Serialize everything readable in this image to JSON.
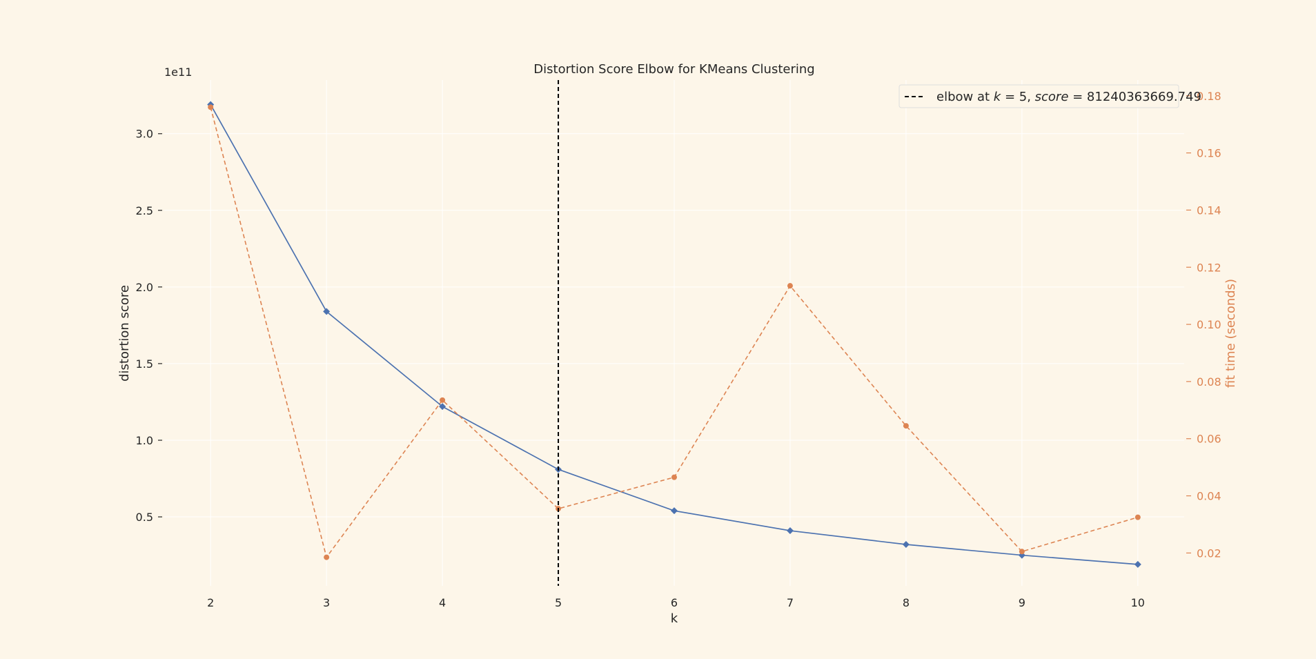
{
  "chart_data": {
    "type": "line",
    "title": "Distortion Score Elbow for KMeans Clustering",
    "xlabel": "k",
    "ylabel": "distortion score",
    "y2label": "fit time (seconds)",
    "y_offset_label": "1e11",
    "x": [
      2,
      3,
      4,
      5,
      6,
      7,
      8,
      9,
      10
    ],
    "xlim": [
      1.6,
      10.4
    ],
    "ylim": [
      0.05,
      3.35
    ],
    "y2lim": [
      0.0085,
      0.1855
    ],
    "x_ticks": [
      "2",
      "3",
      "4",
      "5",
      "6",
      "7",
      "8",
      "9",
      "10"
    ],
    "y_ticks": [
      0.5,
      1.0,
      1.5,
      2.0,
      2.5,
      3.0
    ],
    "y_tick_labels": [
      "0.5",
      "1.0",
      "1.5",
      "2.0",
      "2.5",
      "3.0"
    ],
    "y2_ticks": [
      0.02,
      0.04,
      0.06,
      0.08,
      0.1,
      0.12,
      0.14,
      0.16,
      0.18
    ],
    "y2_tick_labels": [
      "0.02",
      "0.04",
      "0.06",
      "0.08",
      "0.10",
      "0.12",
      "0.14",
      "0.16",
      "0.18"
    ],
    "series": [
      {
        "axis": "left",
        "style": "solid",
        "marker": "diamond",
        "color": "#4c72b0",
        "values": [
          3.19,
          1.84,
          1.22,
          0.81,
          0.54,
          0.41,
          0.32,
          0.25,
          0.19
        ]
      },
      {
        "axis": "right",
        "style": "dashed",
        "marker": "circle",
        "color": "#dd8452",
        "values": [
          0.176,
          0.0185,
          0.0735,
          0.0355,
          0.0465,
          0.1135,
          0.0645,
          0.0205,
          0.0325
        ]
      }
    ],
    "elbow": {
      "k": 5,
      "color": "#000000",
      "legend_label": "elbow at k = 5, score = 81240363669.749",
      "legend_parts": {
        "prefix": "elbow at ",
        "k_sym": "k",
        "k_val": " = 5, ",
        "score_sym": "score",
        "score_val": " = 81240363669.749"
      }
    },
    "grid": true,
    "legend_position": "top-right",
    "background": "#fdf6e9",
    "grid_color": "#ffffff"
  }
}
